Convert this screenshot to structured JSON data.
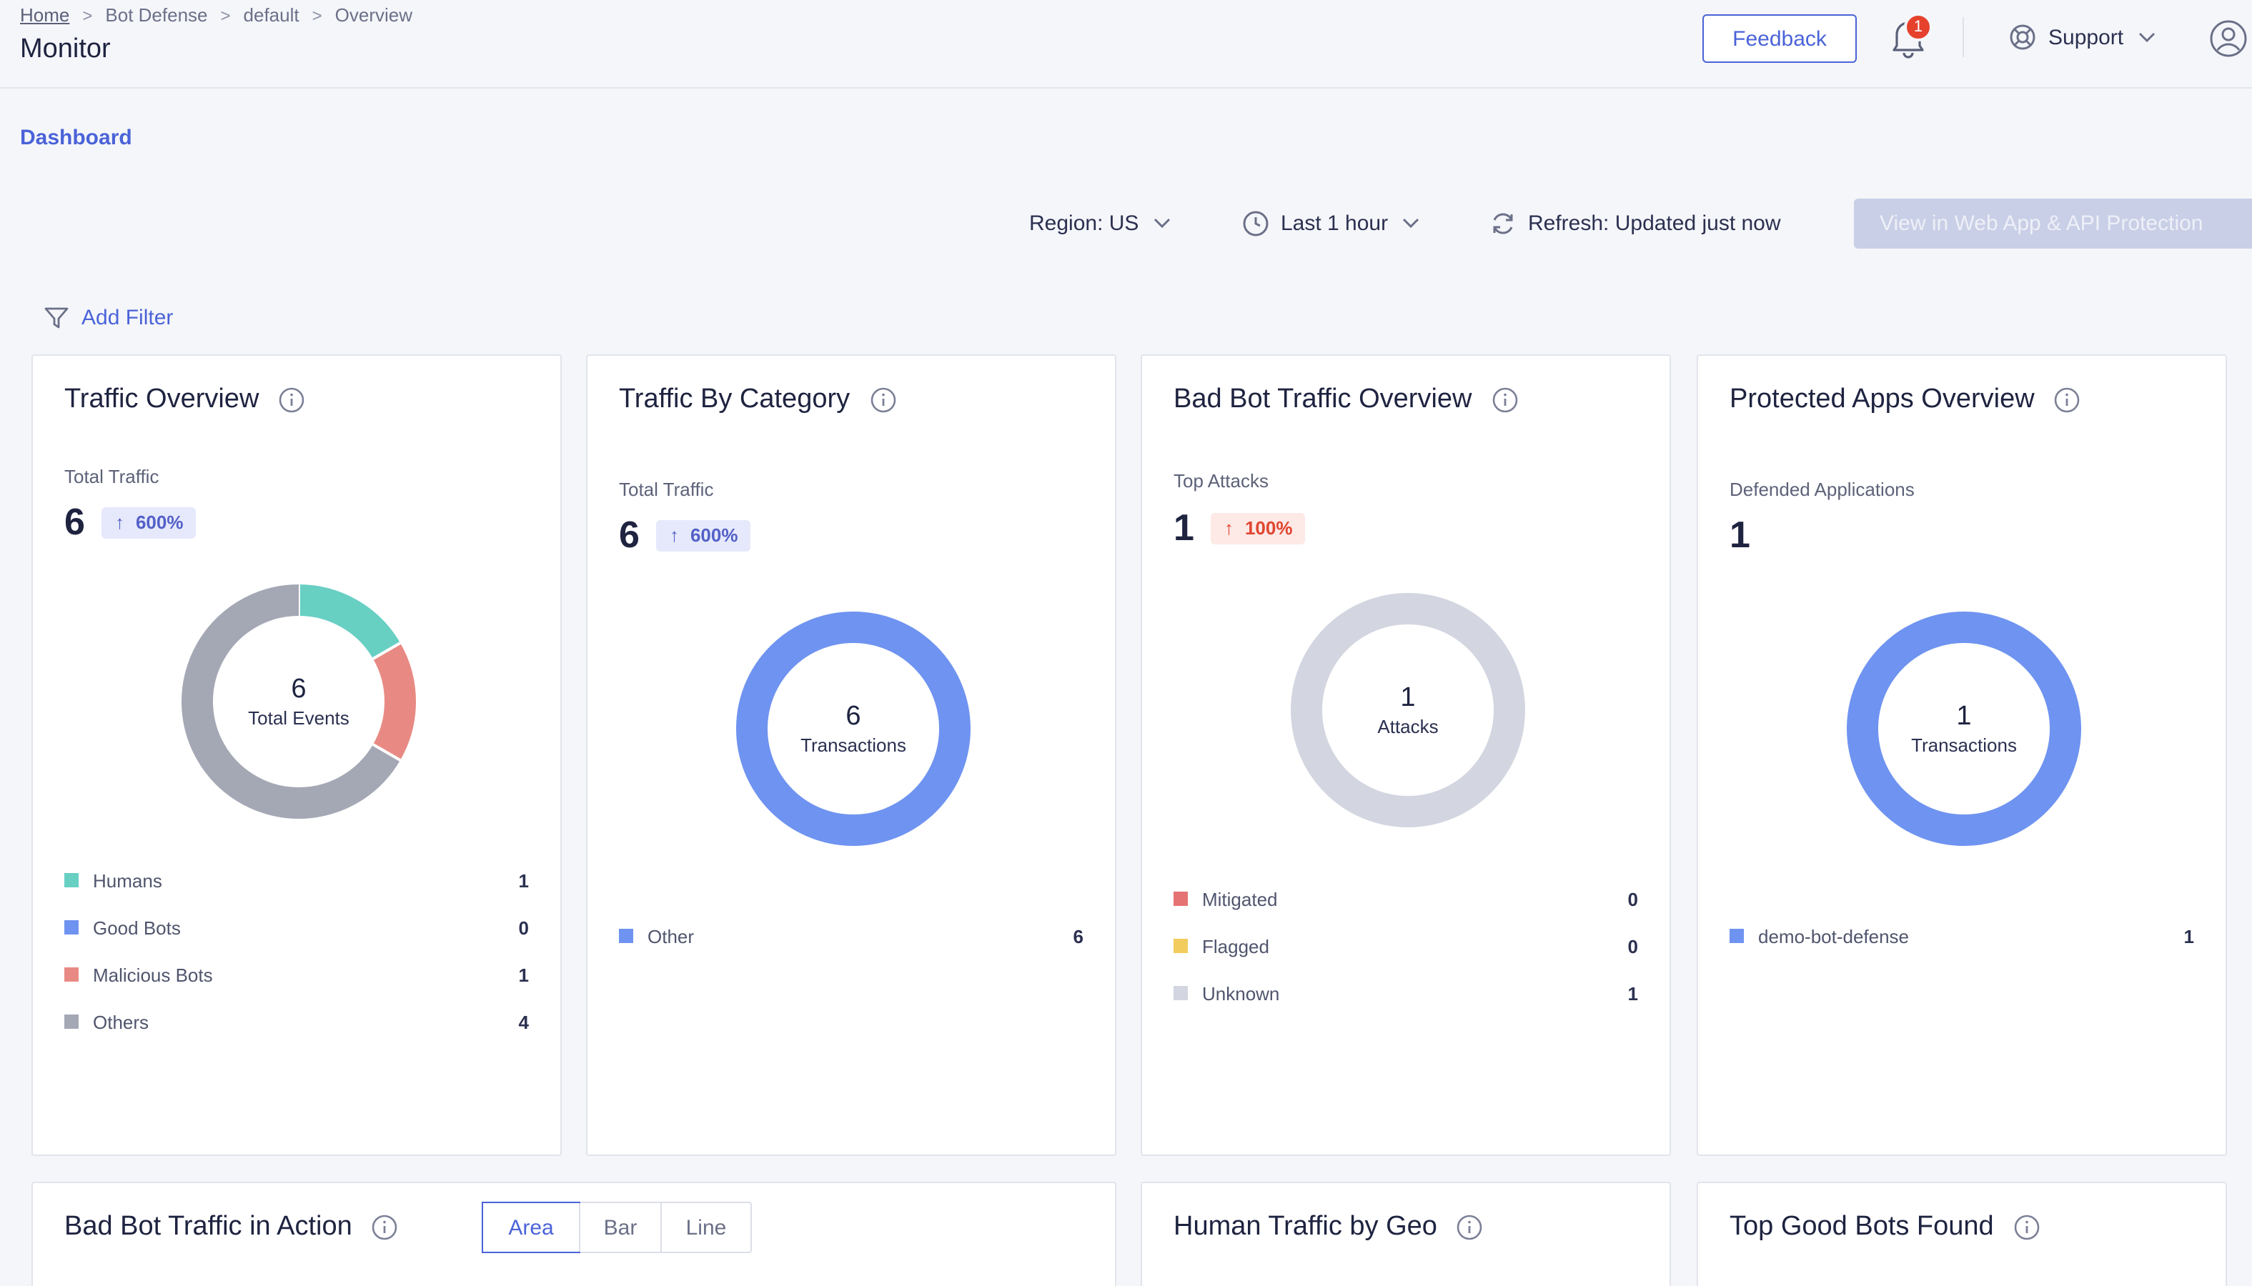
{
  "breadcrumb": {
    "home": "Home",
    "section": "Bot Defense",
    "namespace": "default",
    "current": "Overview"
  },
  "page_title": "Monitor",
  "header": {
    "feedback": "Feedback",
    "notification_count": "1",
    "support": "Support"
  },
  "tab": {
    "dashboard": "Dashboard"
  },
  "toolbar": {
    "region": "Region: US",
    "time_range": "Last 1 hour",
    "refresh": "Refresh: Updated just now",
    "view_btn": "View in Web App & API Protection",
    "add_filter": "Add Filter"
  },
  "cards": {
    "traffic_overview": {
      "title": "Traffic Overview",
      "metric_label": "Total Traffic",
      "value": "6",
      "delta": "600%",
      "center_value": "6",
      "center_caption": "Total Events",
      "legend": [
        {
          "name": "Humans",
          "count": "1",
          "value": 1,
          "color": "#68cfc3"
        },
        {
          "name": "Good Bots",
          "count": "0",
          "value": 0,
          "color": "#6f93f0"
        },
        {
          "name": "Malicious Bots",
          "count": "1",
          "value": 1,
          "color": "#e88a83"
        },
        {
          "name": "Others",
          "count": "4",
          "value": 4,
          "color": "#a4a8b5"
        }
      ]
    },
    "traffic_by_category": {
      "title": "Traffic By Category",
      "metric_label": "Total Traffic",
      "value": "6",
      "delta": "600%",
      "center_value": "6",
      "center_caption": "Transactions",
      "legend": [
        {
          "name": "Other",
          "count": "6",
          "value": 6,
          "color": "#6f93f0"
        }
      ]
    },
    "bad_bot_overview": {
      "title": "Bad Bot Traffic Overview",
      "metric_label": "Top Attacks",
      "value": "1",
      "delta": "100%",
      "center_value": "1",
      "center_caption": "Attacks",
      "legend": [
        {
          "name": "Mitigated",
          "count": "0",
          "value": 0,
          "color": "#e57373"
        },
        {
          "name": "Flagged",
          "count": "0",
          "value": 0,
          "color": "#f2cc5c"
        },
        {
          "name": "Unknown",
          "count": "1",
          "value": 1,
          "color": "#d3d6e0"
        }
      ]
    },
    "protected_apps": {
      "title": "Protected Apps Overview",
      "metric_label": "Defended Applications",
      "value": "1",
      "center_value": "1",
      "center_caption": "Transactions",
      "legend": [
        {
          "name": "demo-bot-defense",
          "count": "1",
          "value": 1,
          "color": "#6f93f0"
        }
      ]
    },
    "bad_bot_action": {
      "title": "Bad Bot Traffic in Action",
      "chart_types": [
        "Area",
        "Bar",
        "Line"
      ],
      "selected": "Area"
    },
    "human_geo": {
      "title": "Human Traffic by Geo"
    },
    "top_good_bots": {
      "title": "Top Good Bots Found"
    }
  }
}
